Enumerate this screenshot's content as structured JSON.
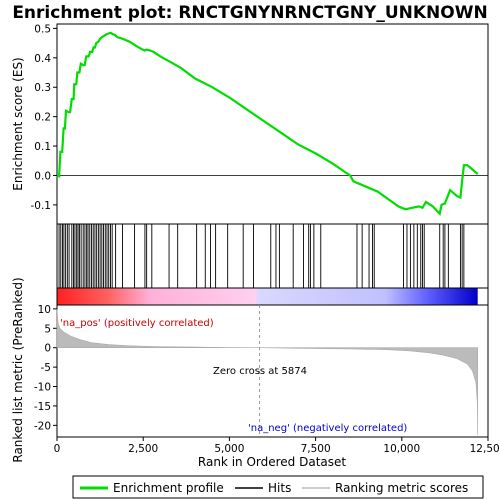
{
  "chart_data": {
    "type": "line",
    "title": "Enrichment plot: RNCTGNYNRNCTGNY_UNKNOWN",
    "x_label": "Rank in Ordered Dataset",
    "x_range": [
      0,
      12500
    ],
    "x_ticks": [
      0,
      2500,
      5000,
      7500,
      10000,
      12500
    ],
    "x_tick_labels": [
      "0",
      "2,500",
      "5,000",
      "7,500",
      "10,000",
      "12,500"
    ],
    "n_genes": 12200,
    "es_panel": {
      "y_label": "Enrichment score (ES)",
      "y_range": [
        -0.165,
        0.515
      ],
      "y_ticks": [
        -0.1,
        0.0,
        0.1,
        0.2,
        0.3,
        0.4,
        0.5
      ],
      "y_tick_labels": [
        "-0.1",
        "0.0",
        "0.1",
        "0.2",
        "0.3",
        "0.4",
        "0.5"
      ],
      "series_color": "#00dd00",
      "enrichment_profile": [
        [
          0,
          0.0
        ],
        [
          60,
          -0.003
        ],
        [
          100,
          0.08
        ],
        [
          150,
          0.08
        ],
        [
          190,
          0.16
        ],
        [
          230,
          0.16
        ],
        [
          260,
          0.22
        ],
        [
          340,
          0.215
        ],
        [
          380,
          0.215
        ],
        [
          430,
          0.26
        ],
        [
          480,
          0.26
        ],
        [
          500,
          0.31
        ],
        [
          560,
          0.31
        ],
        [
          590,
          0.35
        ],
        [
          650,
          0.35
        ],
        [
          690,
          0.38
        ],
        [
          760,
          0.375
        ],
        [
          800,
          0.375
        ],
        [
          850,
          0.405
        ],
        [
          920,
          0.405
        ],
        [
          960,
          0.42
        ],
        [
          1020,
          0.42
        ],
        [
          1060,
          0.435
        ],
        [
          1100,
          0.435
        ],
        [
          1140,
          0.45
        ],
        [
          1200,
          0.455
        ],
        [
          1250,
          0.465
        ],
        [
          1300,
          0.47
        ],
        [
          1370,
          0.475
        ],
        [
          1430,
          0.48
        ],
        [
          1500,
          0.483
        ],
        [
          1560,
          0.485
        ],
        [
          1620,
          0.48
        ],
        [
          1680,
          0.478
        ],
        [
          1750,
          0.47
        ],
        [
          1900,
          0.465
        ],
        [
          2100,
          0.455
        ],
        [
          2300,
          0.44
        ],
        [
          2450,
          0.43
        ],
        [
          2550,
          0.425
        ],
        [
          2600,
          0.428
        ],
        [
          2700,
          0.425
        ],
        [
          2800,
          0.42
        ],
        [
          3000,
          0.405
        ],
        [
          3300,
          0.385
        ],
        [
          3600,
          0.365
        ],
        [
          4000,
          0.33
        ],
        [
          4500,
          0.3
        ],
        [
          5000,
          0.265
        ],
        [
          5500,
          0.225
        ],
        [
          6000,
          0.185
        ],
        [
          6500,
          0.145
        ],
        [
          7000,
          0.105
        ],
        [
          7500,
          0.075
        ],
        [
          8000,
          0.04
        ],
        [
          8500,
          0.0
        ],
        [
          8600,
          -0.02
        ],
        [
          9000,
          -0.04
        ],
        [
          9300,
          -0.055
        ],
        [
          9600,
          -0.08
        ],
        [
          9900,
          -0.105
        ],
        [
          10100,
          -0.115
        ],
        [
          10300,
          -0.11
        ],
        [
          10500,
          -0.105
        ],
        [
          10600,
          -0.11
        ],
        [
          10700,
          -0.09
        ],
        [
          10900,
          -0.105
        ],
        [
          11100,
          -0.13
        ],
        [
          11150,
          -0.1
        ],
        [
          11250,
          -0.095
        ],
        [
          11400,
          -0.05
        ],
        [
          11600,
          -0.07
        ],
        [
          11700,
          -0.075
        ],
        [
          11750,
          -0.02
        ],
        [
          11800,
          0.035
        ],
        [
          11900,
          0.035
        ],
        [
          12000,
          0.025
        ],
        [
          12200,
          0.005
        ]
      ]
    },
    "hits_panel": {
      "hit_positions": [
        60,
        110,
        160,
        200,
        250,
        300,
        350,
        430,
        480,
        520,
        570,
        610,
        650,
        700,
        760,
        810,
        860,
        900,
        950,
        1000,
        1050,
        1100,
        1150,
        1200,
        1250,
        1300,
        1350,
        1400,
        1450,
        1500,
        1550,
        1600,
        1700,
        1900,
        2250,
        2550,
        2600,
        2750,
        3250,
        3500,
        4050,
        4300,
        4450,
        4600,
        4950,
        5400,
        5700,
        6200,
        6350,
        6450,
        6850,
        7150,
        7300,
        7350,
        7450,
        7650,
        8700,
        8850,
        9050,
        9150,
        9200,
        10050,
        10150,
        10250,
        10350,
        10450,
        10550,
        10600,
        10650,
        11100,
        11200,
        11250,
        11350,
        11700,
        11750,
        11800
      ],
      "hit_color": "#000000"
    },
    "metric_bar": {
      "colors": [
        "#ff0000",
        "#ffffff",
        "#0000ff"
      ]
    },
    "ranked_metric_panel": {
      "y_label": "Ranked list metric (PreRanked)",
      "y_range": [
        -23,
        11
      ],
      "y_ticks": [
        -20,
        -15,
        -10,
        -5,
        0,
        5,
        10
      ],
      "y_tick_labels": [
        "-20",
        "-15",
        "-10",
        "-5",
        "0",
        "5",
        "10"
      ],
      "series_color": "#bbbbbb",
      "metric_profile": [
        [
          0,
          10.0
        ],
        [
          30,
          6.5
        ],
        [
          80,
          5.0
        ],
        [
          200,
          4.0
        ],
        [
          400,
          3.0
        ],
        [
          700,
          2.0
        ],
        [
          1000,
          1.3
        ],
        [
          1500,
          0.8
        ],
        [
          2000,
          0.55
        ],
        [
          2800,
          0.3
        ],
        [
          4000,
          0.15
        ],
        [
          5000,
          0.05
        ],
        [
          5874,
          0.0
        ],
        [
          7000,
          -0.15
        ],
        [
          8500,
          -0.3
        ],
        [
          9500,
          -0.5
        ],
        [
          10200,
          -0.8
        ],
        [
          10800,
          -1.3
        ],
        [
          11200,
          -1.9
        ],
        [
          11600,
          -2.8
        ],
        [
          11900,
          -4.2
        ],
        [
          12050,
          -6.0
        ],
        [
          12150,
          -9.0
        ],
        [
          12190,
          -14.0
        ],
        [
          12200,
          -22.5
        ]
      ],
      "zero_cross_rank": 5874,
      "zero_cross_label": "Zero cross at 5874",
      "pos_label": "'na_pos' (positively correlated)",
      "pos_color": "#cc0000",
      "neg_label": "'na_neg' (negatively correlated)",
      "neg_color": "#0000cc"
    },
    "legend": {
      "entries": [
        {
          "label": "Enrichment profile",
          "color": "#00dd00",
          "style": "line"
        },
        {
          "label": "Hits",
          "color": "#000000",
          "style": "line"
        },
        {
          "label": "Ranking metric scores",
          "color": "#bbbbbb",
          "style": "line"
        }
      ]
    }
  }
}
